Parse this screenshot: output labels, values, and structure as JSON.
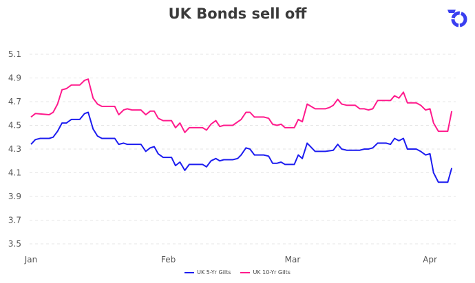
{
  "chart_data": {
    "type": "line",
    "title": "UK Bonds sell off",
    "xlabel": "",
    "ylabel": "",
    "x_unit": "days since Jan 1",
    "xlim": [
      0,
      95
    ],
    "ylim": [
      3.5,
      5.1
    ],
    "y_ticks": [
      "3.5",
      "3.7",
      "3.9",
      "4.1",
      "4.3",
      "4.5",
      "4.7",
      "4.9",
      "5.1"
    ],
    "x_ticks": [
      {
        "label": "Jan",
        "x": 0
      },
      {
        "label": "Feb",
        "x": 31
      },
      {
        "label": "Mar",
        "x": 59
      },
      {
        "label": "Apr",
        "x": 90
      }
    ],
    "grid": true,
    "legend_position": "bottom",
    "series": [
      {
        "name": "UK 5-Yr Gilts",
        "color": "#1c1cf0",
        "points": [
          [
            0,
            4.34
          ],
          [
            1,
            4.38
          ],
          [
            2.1,
            4.39
          ],
          [
            4.1,
            4.39
          ],
          [
            5,
            4.4
          ],
          [
            6,
            4.45
          ],
          [
            7,
            4.52
          ],
          [
            8,
            4.52
          ],
          [
            9.1,
            4.55
          ],
          [
            11,
            4.55
          ],
          [
            12.1,
            4.6
          ],
          [
            12.9,
            4.61
          ],
          [
            14,
            4.47
          ],
          [
            15,
            4.41
          ],
          [
            16,
            4.39
          ],
          [
            18.9,
            4.39
          ],
          [
            19.8,
            4.34
          ],
          [
            20.9,
            4.35
          ],
          [
            21.7,
            4.34
          ],
          [
            24.8,
            4.34
          ],
          [
            25.9,
            4.28
          ],
          [
            26.9,
            4.31
          ],
          [
            27.8,
            4.32
          ],
          [
            28.7,
            4.26
          ],
          [
            29.8,
            4.23
          ],
          [
            31.7,
            4.23
          ],
          [
            32.6,
            4.16
          ],
          [
            33.6,
            4.19
          ],
          [
            34.7,
            4.12
          ],
          [
            35.7,
            4.17
          ],
          [
            38.7,
            4.17
          ],
          [
            39.6,
            4.15
          ],
          [
            40.6,
            4.2
          ],
          [
            41.7,
            4.22
          ],
          [
            42.6,
            4.2
          ],
          [
            43.5,
            4.21
          ],
          [
            45.5,
            4.21
          ],
          [
            46.6,
            4.22
          ],
          [
            47.4,
            4.25
          ],
          [
            48.5,
            4.31
          ],
          [
            49.4,
            4.3
          ],
          [
            50.4,
            4.25
          ],
          [
            52.5,
            4.25
          ],
          [
            53.6,
            4.24
          ],
          [
            54.5,
            4.18
          ],
          [
            55.5,
            4.18
          ],
          [
            56.4,
            4.19
          ],
          [
            57.3,
            4.17
          ],
          [
            59.4,
            4.17
          ],
          [
            60.3,
            4.25
          ],
          [
            61.2,
            4.22
          ],
          [
            62.3,
            4.35
          ],
          [
            64.1,
            4.28
          ],
          [
            66.4,
            4.28
          ],
          [
            68.2,
            4.29
          ],
          [
            69.2,
            4.34
          ],
          [
            70.1,
            4.3
          ],
          [
            71.2,
            4.29
          ],
          [
            74.2,
            4.29
          ],
          [
            75.2,
            4.3
          ],
          [
            76.1,
            4.3
          ],
          [
            77.1,
            4.31
          ],
          [
            78.2,
            4.35
          ],
          [
            80.1,
            4.35
          ],
          [
            81.1,
            4.34
          ],
          [
            82,
            4.39
          ],
          [
            83,
            4.37
          ],
          [
            84,
            4.39
          ],
          [
            84.9,
            4.3
          ],
          [
            86.9,
            4.3
          ],
          [
            87.9,
            4.28
          ],
          [
            89,
            4.25
          ],
          [
            90,
            4.26
          ],
          [
            90.8,
            4.1
          ],
          [
            91.9,
            4.02
          ],
          [
            94,
            4.02
          ],
          [
            94.9,
            4.14
          ]
        ]
      },
      {
        "name": "UK 10-Yr Gilts",
        "color": "#ff1a8c",
        "points": [
          [
            0,
            4.57
          ],
          [
            1,
            4.6
          ],
          [
            4.1,
            4.59
          ],
          [
            5,
            4.61
          ],
          [
            6,
            4.68
          ],
          [
            7,
            4.8
          ],
          [
            8,
            4.81
          ],
          [
            9.1,
            4.84
          ],
          [
            11,
            4.84
          ],
          [
            12.1,
            4.88
          ],
          [
            12.9,
            4.89
          ],
          [
            14,
            4.73
          ],
          [
            15,
            4.68
          ],
          [
            16,
            4.66
          ],
          [
            18.9,
            4.66
          ],
          [
            19.8,
            4.59
          ],
          [
            20.9,
            4.63
          ],
          [
            21.7,
            4.64
          ],
          [
            22.8,
            4.63
          ],
          [
            24.8,
            4.63
          ],
          [
            25.9,
            4.59
          ],
          [
            26.9,
            4.62
          ],
          [
            27.8,
            4.62
          ],
          [
            28.7,
            4.56
          ],
          [
            29.8,
            4.54
          ],
          [
            31.7,
            4.54
          ],
          [
            32.6,
            4.48
          ],
          [
            33.6,
            4.52
          ],
          [
            34.7,
            4.44
          ],
          [
            35.7,
            4.48
          ],
          [
            38.7,
            4.48
          ],
          [
            39.6,
            4.46
          ],
          [
            40.6,
            4.51
          ],
          [
            41.7,
            4.54
          ],
          [
            42.6,
            4.49
          ],
          [
            43.5,
            4.5
          ],
          [
            45.5,
            4.5
          ],
          [
            47.4,
            4.55
          ],
          [
            48.5,
            4.61
          ],
          [
            49.4,
            4.61
          ],
          [
            50.4,
            4.57
          ],
          [
            52.5,
            4.57
          ],
          [
            53.6,
            4.56
          ],
          [
            54.5,
            4.51
          ],
          [
            55.5,
            4.5
          ],
          [
            56.4,
            4.51
          ],
          [
            57.3,
            4.48
          ],
          [
            59.4,
            4.48
          ],
          [
            60.3,
            4.55
          ],
          [
            61.2,
            4.53
          ],
          [
            62.3,
            4.68
          ],
          [
            64.1,
            4.64
          ],
          [
            66.4,
            4.64
          ],
          [
            67.3,
            4.65
          ],
          [
            68.2,
            4.67
          ],
          [
            69.2,
            4.72
          ],
          [
            70.1,
            4.68
          ],
          [
            71.2,
            4.67
          ],
          [
            73.1,
            4.67
          ],
          [
            74.2,
            4.64
          ],
          [
            75.2,
            4.64
          ],
          [
            76.1,
            4.63
          ],
          [
            77.1,
            4.64
          ],
          [
            78.2,
            4.71
          ],
          [
            81.1,
            4.71
          ],
          [
            82,
            4.75
          ],
          [
            83,
            4.73
          ],
          [
            84,
            4.78
          ],
          [
            84.9,
            4.69
          ],
          [
            86.9,
            4.69
          ],
          [
            87.9,
            4.67
          ],
          [
            89,
            4.63
          ],
          [
            90,
            4.64
          ],
          [
            90.8,
            4.52
          ],
          [
            91.9,
            4.45
          ],
          [
            94,
            4.45
          ],
          [
            94.9,
            4.62
          ]
        ]
      }
    ]
  },
  "logo_color": "#3a3ff0"
}
